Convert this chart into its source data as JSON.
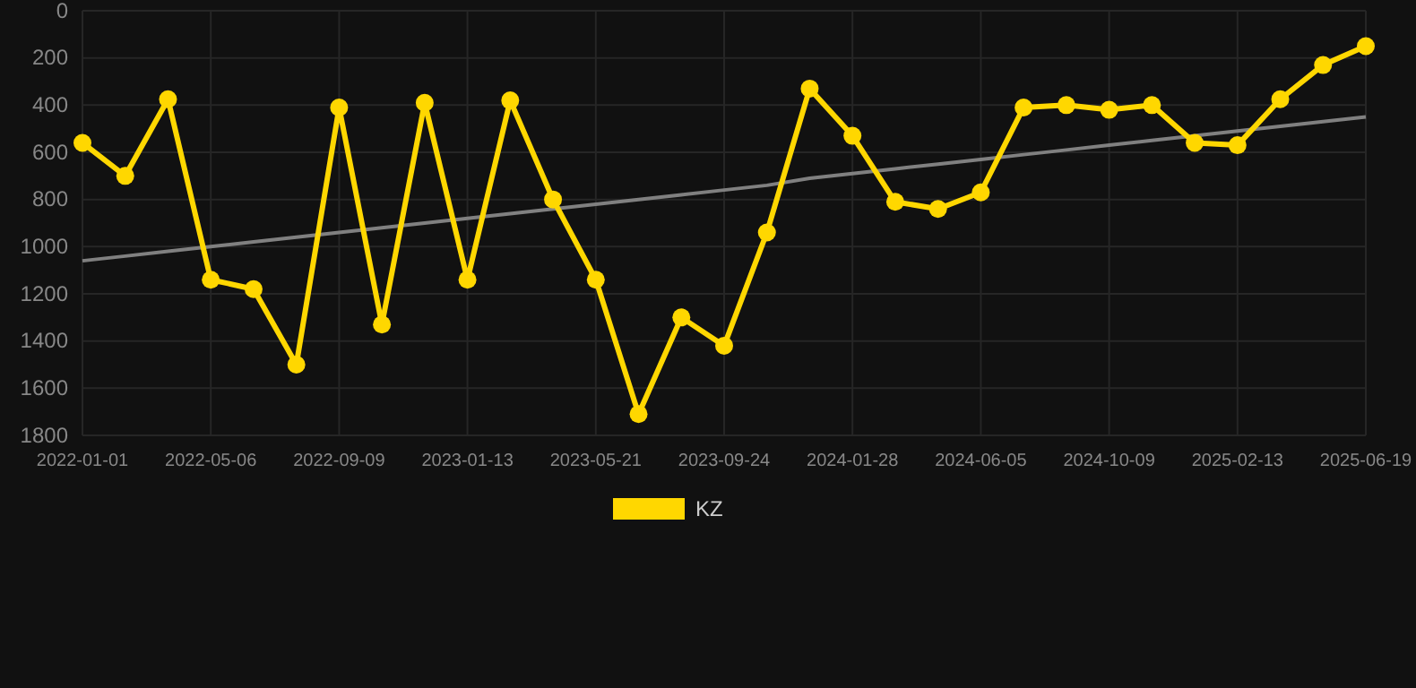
{
  "chart_data": {
    "type": "line",
    "categories": [
      "2022-01-01",
      null,
      null,
      "2022-05-06",
      null,
      null,
      "2022-09-09",
      null,
      null,
      "2023-01-13",
      null,
      null,
      "2023-05-21",
      null,
      null,
      "2023-09-24",
      null,
      null,
      "2024-01-28",
      null,
      null,
      "2024-06-05",
      null,
      null,
      "2024-10-09",
      null,
      null,
      "2025-02-13",
      null,
      null,
      "2025-06-19"
    ],
    "series": [
      {
        "name": "KZ",
        "color": "#ffd700",
        "marker": "circle",
        "values": [
          560,
          700,
          375,
          1140,
          1180,
          1500,
          410,
          1330,
          390,
          1140,
          380,
          800,
          1140,
          1710,
          1300,
          1420,
          940,
          330,
          530,
          810,
          840,
          770,
          410,
          400,
          420,
          400,
          560,
          570,
          375,
          230,
          150
        ]
      },
      {
        "type": "line",
        "color": "#808080",
        "marker": "none",
        "values": [
          1060,
          1040,
          1020,
          1000,
          980,
          960,
          940,
          920,
          900,
          880,
          860,
          840,
          820,
          800,
          780,
          760,
          740,
          710,
          690,
          670,
          650,
          630,
          610,
          590,
          570,
          550,
          530,
          510,
          490,
          470,
          450
        ]
      }
    ],
    "ylim": [
      1800,
      0
    ],
    "yticks": [
      0,
      200,
      400,
      600,
      800,
      1000,
      1200,
      1400,
      1600,
      1800
    ],
    "grid": true,
    "legend": "bottom"
  }
}
